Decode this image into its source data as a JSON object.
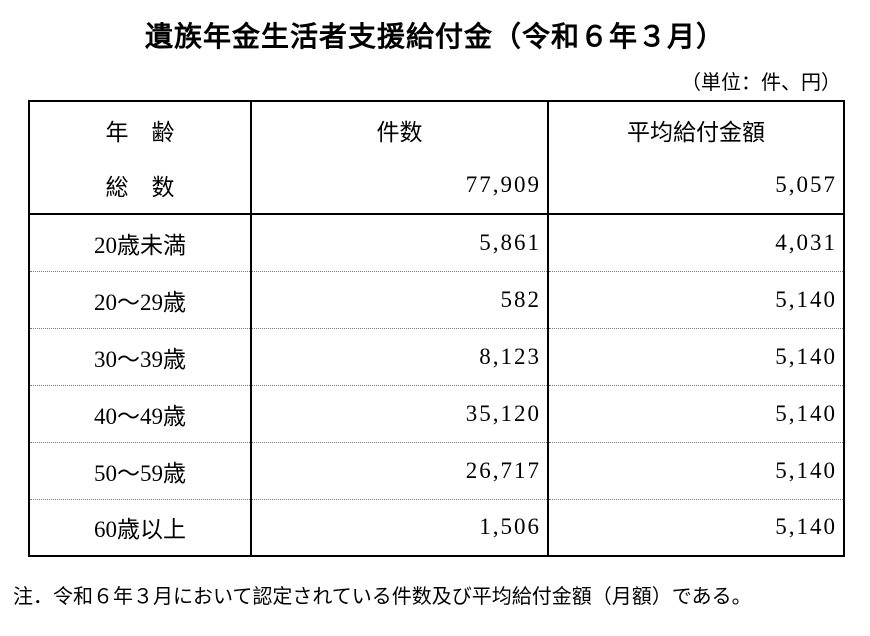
{
  "title": "遺族年金生活者支援給付金（令和６年３月）",
  "unit_note": "（単位：件、円）",
  "table": {
    "headers": [
      "年　齢",
      "件数",
      "平均給付金額"
    ],
    "rows": [
      {
        "age": "総　数",
        "count": "77,909",
        "avg": "5,057"
      },
      {
        "age": "20歳未満",
        "count": "5,861",
        "avg": "4,031"
      },
      {
        "age": "20〜29歳",
        "count": "582",
        "avg": "5,140"
      },
      {
        "age": "30〜39歳",
        "count": "8,123",
        "avg": "5,140"
      },
      {
        "age": "40〜49歳",
        "count": "35,120",
        "avg": "5,140"
      },
      {
        "age": "50〜59歳",
        "count": "26,717",
        "avg": "5,140"
      },
      {
        "age": "60歳以上",
        "count": "1,506",
        "avg": "5,140"
      }
    ]
  },
  "footnote": "注．令和６年３月において認定されている件数及び平均給付金額（月額）である。"
}
